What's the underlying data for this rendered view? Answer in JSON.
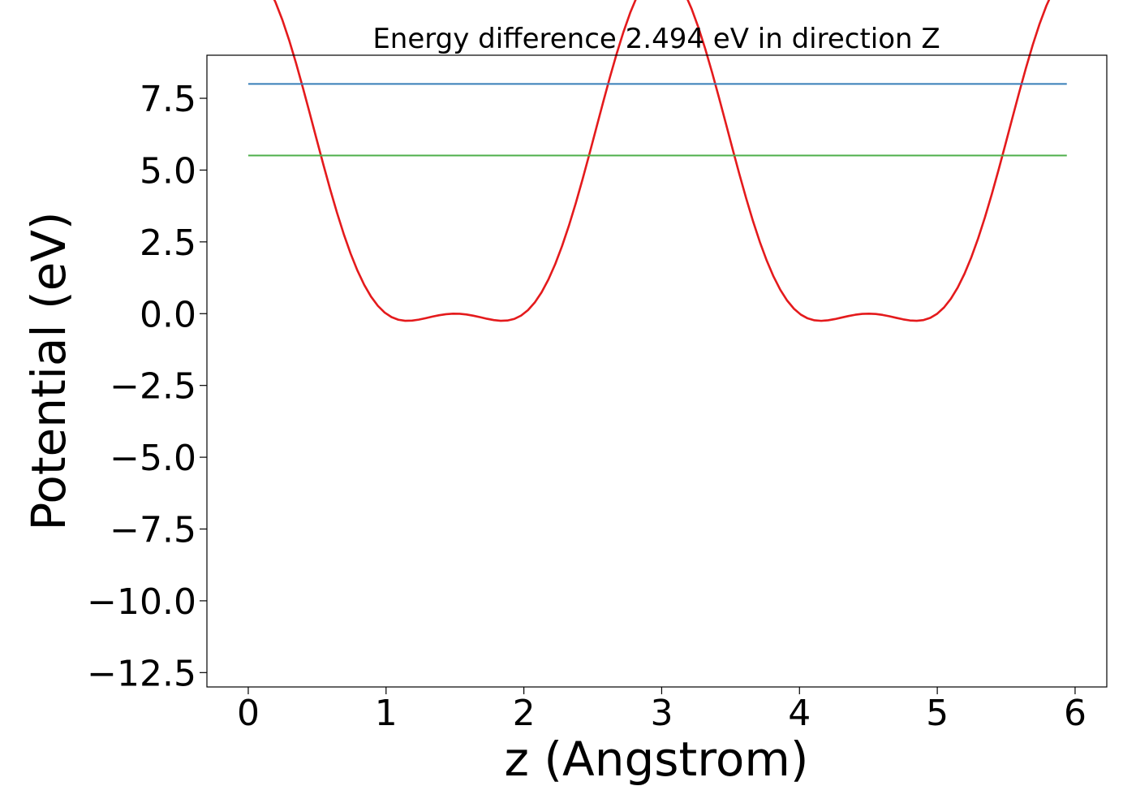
{
  "chart_data": {
    "type": "line",
    "title": "Energy difference 2.494 eV in direction Z",
    "xlabel": "z (Angstrom)",
    "ylabel": "Potential (eV)",
    "xlim": [
      -0.3,
      6.23
    ],
    "ylim": [
      -13.0,
      9.0
    ],
    "xticks": [
      0,
      1,
      2,
      3,
      4,
      5,
      6
    ],
    "xtick_labels": [
      "0",
      "1",
      "2",
      "3",
      "4",
      "5",
      "6"
    ],
    "yticks": [
      7.5,
      5.0,
      2.5,
      0.0,
      -2.5,
      -5.0,
      -7.5,
      -10.0,
      -12.5
    ],
    "ytick_labels": [
      "7.5",
      "5.0",
      "2.5",
      "0.0",
      "−2.5",
      "−5.0",
      "−7.5",
      "−10.0",
      "−12.5"
    ],
    "grid": false,
    "series": [
      {
        "color": "#e41a1c",
        "function": "4 + 6*cos(2*pi*x/3) + 2*cos(4*pi*x/3)",
        "x_range": [
          0,
          5.94
        ],
        "n_points": 121
      },
      {
        "color": "#377eb8",
        "x": [
          0,
          5.94
        ],
        "y": [
          8.0,
          8.0
        ]
      },
      {
        "color": "#4daf4a",
        "x": [
          0,
          5.94
        ],
        "y": [
          5.506,
          5.506
        ]
      }
    ]
  }
}
